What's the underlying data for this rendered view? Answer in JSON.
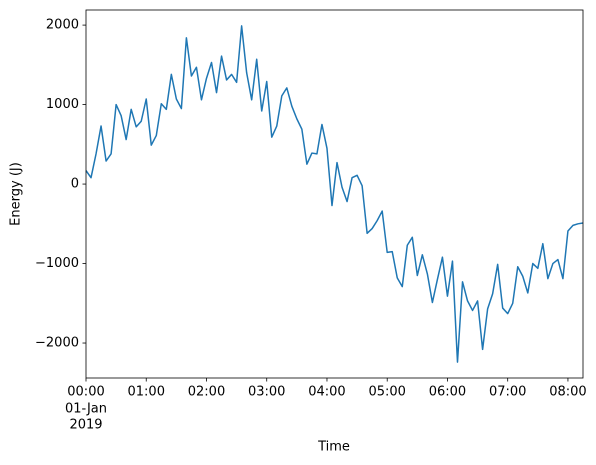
{
  "chart_data": {
    "type": "line",
    "color": "#1f77b4",
    "grid": false,
    "xlabel": "Time",
    "ylabel": "Energy (J)",
    "x": [
      "2019-01-01 00:00",
      "2019-01-01 00:05",
      "2019-01-01 00:10",
      "2019-01-01 00:15",
      "2019-01-01 00:20",
      "2019-01-01 00:25",
      "2019-01-01 00:30",
      "2019-01-01 00:35",
      "2019-01-01 00:40",
      "2019-01-01 00:45",
      "2019-01-01 00:50",
      "2019-01-01 00:55",
      "2019-01-01 01:00",
      "2019-01-01 01:05",
      "2019-01-01 01:10",
      "2019-01-01 01:15",
      "2019-01-01 01:20",
      "2019-01-01 01:25",
      "2019-01-01 01:30",
      "2019-01-01 01:35",
      "2019-01-01 01:40",
      "2019-01-01 01:45",
      "2019-01-01 01:50",
      "2019-01-01 01:55",
      "2019-01-01 02:00",
      "2019-01-01 02:05",
      "2019-01-01 02:10",
      "2019-01-01 02:15",
      "2019-01-01 02:20",
      "2019-01-01 02:25",
      "2019-01-01 02:30",
      "2019-01-01 02:35",
      "2019-01-01 02:40",
      "2019-01-01 02:45",
      "2019-01-01 02:50",
      "2019-01-01 02:55",
      "2019-01-01 03:00",
      "2019-01-01 03:05",
      "2019-01-01 03:10",
      "2019-01-01 03:15",
      "2019-01-01 03:20",
      "2019-01-01 03:25",
      "2019-01-01 03:30",
      "2019-01-01 03:35",
      "2019-01-01 03:40",
      "2019-01-01 03:45",
      "2019-01-01 03:50",
      "2019-01-01 03:55",
      "2019-01-01 04:00",
      "2019-01-01 04:05",
      "2019-01-01 04:10",
      "2019-01-01 04:15",
      "2019-01-01 04:20",
      "2019-01-01 04:25",
      "2019-01-01 04:30",
      "2019-01-01 04:35",
      "2019-01-01 04:40",
      "2019-01-01 04:45",
      "2019-01-01 04:50",
      "2019-01-01 04:55",
      "2019-01-01 05:00",
      "2019-01-01 05:05",
      "2019-01-01 05:10",
      "2019-01-01 05:15",
      "2019-01-01 05:20",
      "2019-01-01 05:25",
      "2019-01-01 05:30",
      "2019-01-01 05:35",
      "2019-01-01 05:40",
      "2019-01-01 05:45",
      "2019-01-01 05:50",
      "2019-01-01 05:55",
      "2019-01-01 06:00",
      "2019-01-01 06:05",
      "2019-01-01 06:10",
      "2019-01-01 06:15",
      "2019-01-01 06:20",
      "2019-01-01 06:25",
      "2019-01-01 06:30",
      "2019-01-01 06:35",
      "2019-01-01 06:40",
      "2019-01-01 06:45",
      "2019-01-01 06:50",
      "2019-01-01 06:55",
      "2019-01-01 07:00",
      "2019-01-01 07:05",
      "2019-01-01 07:10",
      "2019-01-01 07:15",
      "2019-01-01 07:20",
      "2019-01-01 07:25",
      "2019-01-01 07:30",
      "2019-01-01 07:35",
      "2019-01-01 07:40",
      "2019-01-01 07:45",
      "2019-01-01 07:50",
      "2019-01-01 07:55",
      "2019-01-01 08:00",
      "2019-01-01 08:05",
      "2019-01-01 08:10",
      "2019-01-01 08:15"
    ],
    "values": [
      170,
      80,
      380,
      730,
      290,
      380,
      1000,
      860,
      560,
      940,
      720,
      790,
      1070,
      490,
      610,
      1010,
      940,
      1380,
      1070,
      950,
      1840,
      1360,
      1470,
      1060,
      1330,
      1530,
      1150,
      1610,
      1310,
      1380,
      1280,
      1990,
      1400,
      1060,
      1570,
      920,
      1290,
      590,
      730,
      1110,
      1210,
      980,
      820,
      690,
      250,
      390,
      380,
      750,
      450,
      -270,
      270,
      -40,
      -220,
      80,
      110,
      -20,
      -620,
      -560,
      -460,
      -340,
      -860,
      -850,
      -1180,
      -1290,
      -770,
      -670,
      -1150,
      -890,
      -1130,
      -1490,
      -1200,
      -920,
      -1410,
      -970,
      -2240,
      -1230,
      -1470,
      -1590,
      -1470,
      -2080,
      -1570,
      -1380,
      -1010,
      -1560,
      -1630,
      -1500,
      -1040,
      -1160,
      -1370,
      -1000,
      -1060,
      -750,
      -1190,
      -1000,
      -950,
      -1190,
      -590,
      -520,
      -500,
      -490
    ],
    "xlim": [
      "2019-01-01 00:00",
      "2019-01-01 08:15"
    ],
    "xticks": [
      {
        "value": "2019-01-01 00:00",
        "label": "00:00"
      },
      {
        "value": "2019-01-01 01:00",
        "label": "01:00"
      },
      {
        "value": "2019-01-01 02:00",
        "label": "02:00"
      },
      {
        "value": "2019-01-01 03:00",
        "label": "03:00"
      },
      {
        "value": "2019-01-01 04:00",
        "label": "04:00"
      },
      {
        "value": "2019-01-01 05:00",
        "label": "05:00"
      },
      {
        "value": "2019-01-01 06:00",
        "label": "06:00"
      },
      {
        "value": "2019-01-01 07:00",
        "label": "07:00"
      },
      {
        "value": "2019-01-01 08:00",
        "label": "08:00"
      }
    ],
    "xtick_sublabels": [
      "01-Jan",
      "2019"
    ],
    "ylim": [
      -2440,
      2190
    ],
    "yticks": [
      {
        "value": -2000,
        "label": "−2000"
      },
      {
        "value": -1000,
        "label": "−1000"
      },
      0,
      1000,
      2000
    ]
  }
}
